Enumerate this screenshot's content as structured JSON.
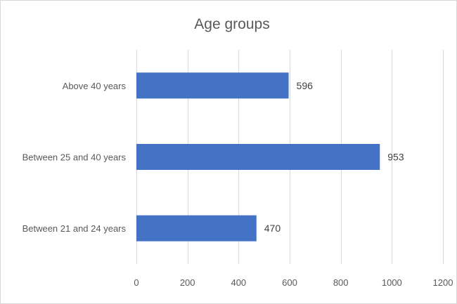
{
  "chart_data": {
    "type": "bar",
    "orientation": "horizontal",
    "title": "Age groups",
    "categories": [
      "Between 21 and 24 years",
      "Between 25 and 40 years",
      "Above 40 years"
    ],
    "values": [
      470,
      953,
      596
    ],
    "xlim": [
      0,
      1200
    ],
    "xticks": [
      0,
      200,
      400,
      600,
      800,
      1000,
      1200
    ],
    "xlabel": "",
    "ylabel": "",
    "grid": true,
    "legend": "none",
    "bar_color": "#4472C4",
    "data_labels": true
  }
}
